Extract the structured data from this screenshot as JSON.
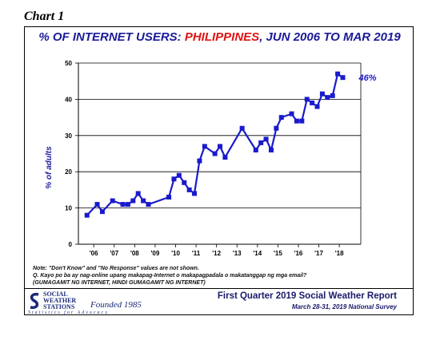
{
  "chart_label": "Chart 1",
  "title_part1": "% OF INTERNET USERS: ",
  "title_highlight": "PHILIPPINES",
  "title_part2": ", JUN 2006 TO MAR 2019",
  "notes": [
    "Note: \"Don't Know\" and \"No Response\" values are not shown.",
    "Q. Kayo po ba ay nag-online upang makapag-Internet o makapagpadala o makatanggap ng mga email?",
    "(GUMAGAMIT NG INTERNET, HINDI GUMAGAMIT NG INTERNET)"
  ],
  "footer": {
    "logo_line1": "SOCIAL",
    "logo_line2": "WEATHER",
    "logo_line3": "STATIONS",
    "logo_founded": "Founded 1985",
    "logo_tagline": "Statistics for Advocacy",
    "report_title": "First Quarter 2019 Social Weather Report",
    "report_subtitle": "March 28-31, 2019 National Survey"
  },
  "colors": {
    "series": "#1a1acc",
    "title": "#1a1a9a",
    "highlight": "#e01414"
  },
  "chart_data": {
    "type": "line",
    "title": "% OF INTERNET USERS: PHILIPPINES, JUN 2006 TO MAR 2019",
    "xlabel": "",
    "ylabel": "% of adults",
    "ylim": [
      0,
      50
    ],
    "yticks": [
      0,
      10,
      20,
      30,
      40,
      50
    ],
    "xlim": [
      2005.5,
      2019.3
    ],
    "xtick_labels": [
      "'06",
      "'07",
      "'08",
      "'09",
      "'10",
      "'11",
      "'12",
      "'13",
      "'14",
      "'15",
      "'16",
      "'17",
      "'18"
    ],
    "xtick_positions": [
      2006.25,
      2007.25,
      2008.25,
      2009.25,
      2010.25,
      2011.25,
      2012.25,
      2013.25,
      2014.25,
      2015.25,
      2016.25,
      2017.25,
      2018.25
    ],
    "grid": "horizontal",
    "end_label": "46%",
    "series": [
      {
        "x": [
          2005.92,
          2006.42,
          2006.67,
          2007.17,
          2007.67,
          2007.92,
          2008.17,
          2008.42,
          2008.67,
          2008.92,
          2009.92,
          2010.17,
          2010.42,
          2010.67,
          2010.92,
          2011.17,
          2011.42,
          2011.67,
          2012.17,
          2012.42,
          2012.67,
          2013.5,
          2014.17,
          2014.42,
          2014.67,
          2014.92,
          2015.17,
          2015.42,
          2015.92,
          2016.17,
          2016.42,
          2016.67,
          2016.92,
          2017.17,
          2017.42,
          2017.67,
          2017.92,
          2018.17,
          2018.42
        ],
        "y": [
          8,
          11,
          9,
          12,
          11,
          11,
          12,
          14,
          12,
          11,
          13,
          18,
          19,
          17,
          15,
          14,
          23,
          27,
          25,
          27,
          24,
          32,
          26,
          28,
          29,
          26,
          32,
          35,
          36,
          34,
          34,
          40,
          39,
          38,
          41.5,
          40.5,
          41,
          47,
          46
        ]
      }
    ]
  }
}
